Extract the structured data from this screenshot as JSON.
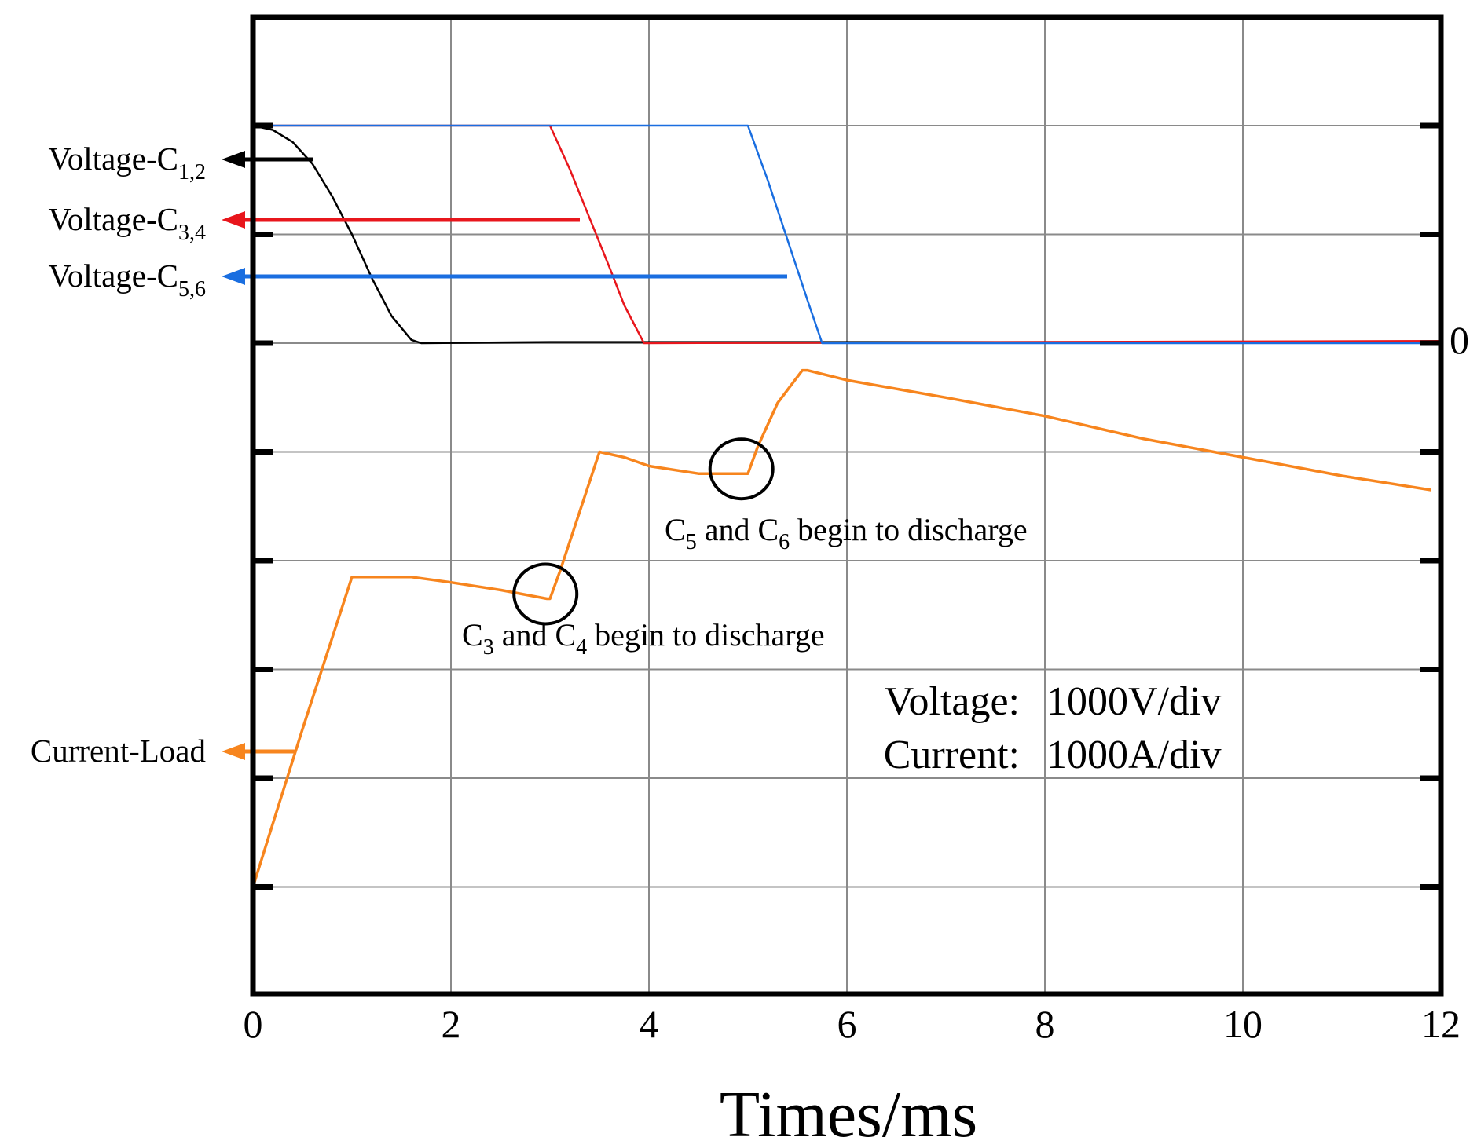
{
  "chart_data": {
    "type": "line",
    "title": "",
    "xlabel": "Times/ms",
    "ylabel": "",
    "xlim": [
      0,
      12
    ],
    "x_ticks": [
      0,
      2,
      4,
      6,
      8,
      10,
      12
    ],
    "y_divisions": 8,
    "zero_marker": "0",
    "grid": true,
    "scale": {
      "voltage_label": "Voltage:",
      "voltage_value": "1000V/div",
      "current_label": "Current:",
      "current_value": "1000A/div"
    },
    "series": [
      {
        "name": "Voltage-C",
        "sub": "1,2",
        "unit": "div",
        "color": "#000000",
        "x": [
          0,
          0.2,
          0.4,
          0.6,
          0.8,
          1.0,
          1.2,
          1.4,
          1.6,
          1.7,
          3.0,
          6.0,
          12.0
        ],
        "y": [
          2.0,
          1.96,
          1.85,
          1.65,
          1.35,
          1.0,
          0.6,
          0.25,
          0.03,
          0.0,
          0.01,
          0.01,
          0.01
        ]
      },
      {
        "name": "Voltage-C",
        "sub": "3,4",
        "unit": "div",
        "color": "#e8161c",
        "x": [
          0.15,
          3.0,
          3.2,
          3.4,
          3.6,
          3.75,
          3.95,
          12.0
        ],
        "y": [
          2.0,
          2.0,
          1.6,
          1.15,
          0.7,
          0.35,
          0.0,
          0.02
        ]
      },
      {
        "name": "Voltage-C",
        "sub": "5,6",
        "unit": "div",
        "color": "#1a6ee0",
        "x": [
          0.15,
          5.0,
          5.2,
          5.4,
          5.6,
          5.75,
          12.0
        ],
        "y": [
          2.0,
          2.0,
          1.5,
          0.95,
          0.4,
          0.0,
          0.0
        ]
      },
      {
        "name": "Current-Load",
        "sub": "",
        "unit": "div",
        "color": "#f7851e",
        "x": [
          0,
          0.5,
          1.0,
          1.45,
          1.6,
          2.0,
          2.5,
          2.97,
          3.0,
          3.1,
          3.3,
          3.5,
          3.75,
          4.0,
          4.5,
          4.95,
          5.0,
          5.1,
          5.3,
          5.55,
          5.6,
          6.0,
          7.0,
          8.0,
          9.0,
          10.0,
          11.0,
          11.9
        ],
        "y": [
          -5.0,
          -3.55,
          -2.15,
          -2.15,
          -2.15,
          -2.2,
          -2.27,
          -2.35,
          -2.35,
          -2.1,
          -1.55,
          -1.0,
          -1.05,
          -1.13,
          -1.2,
          -1.2,
          -1.2,
          -0.95,
          -0.55,
          -0.25,
          -0.25,
          -0.34,
          -0.5,
          -0.67,
          -0.88,
          -1.05,
          -1.22,
          -1.35
        ]
      }
    ],
    "annotations": [
      {
        "sub1": "3",
        "sub2": "4",
        "c_prefix": "C",
        "and": "and",
        "tail": "begin to discharge",
        "at_x": 2.97,
        "at_y": -2.35
      },
      {
        "sub1": "5",
        "sub2": "6",
        "c_prefix": "C",
        "and": "and",
        "tail": "begin to discharge",
        "at_x": 4.95,
        "at_y": -1.2
      }
    ]
  }
}
